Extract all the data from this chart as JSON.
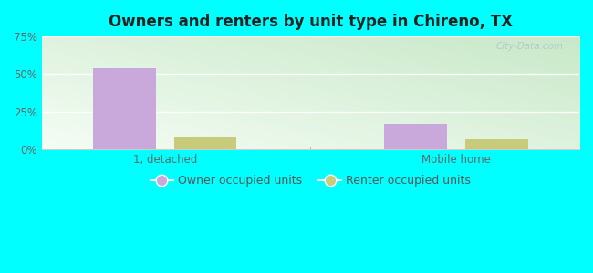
{
  "title": "Owners and renters by unit type in Chireno, TX",
  "categories": [
    "1, detached",
    "Mobile home"
  ],
  "owner_values": [
    54.0,
    17.0
  ],
  "renter_values": [
    8.0,
    7.0
  ],
  "owner_color": "#c9a8dc",
  "renter_color": "#c8cc7a",
  "owner_label": "Owner occupied units",
  "renter_label": "Renter occupied units",
  "ylim": [
    0,
    75
  ],
  "yticks": [
    0,
    25,
    50,
    75
  ],
  "yticklabels": [
    "0%",
    "25%",
    "50%",
    "75%"
  ],
  "background_color": "#00ffff",
  "plot_bg_topleft": "#f0f8f0",
  "plot_bg_bottomright": "#d0eed0",
  "watermark": "City-Data.com",
  "bar_width": 0.28,
  "group_positions": [
    0.45,
    1.75
  ],
  "xlim": [
    -0.1,
    2.3
  ]
}
